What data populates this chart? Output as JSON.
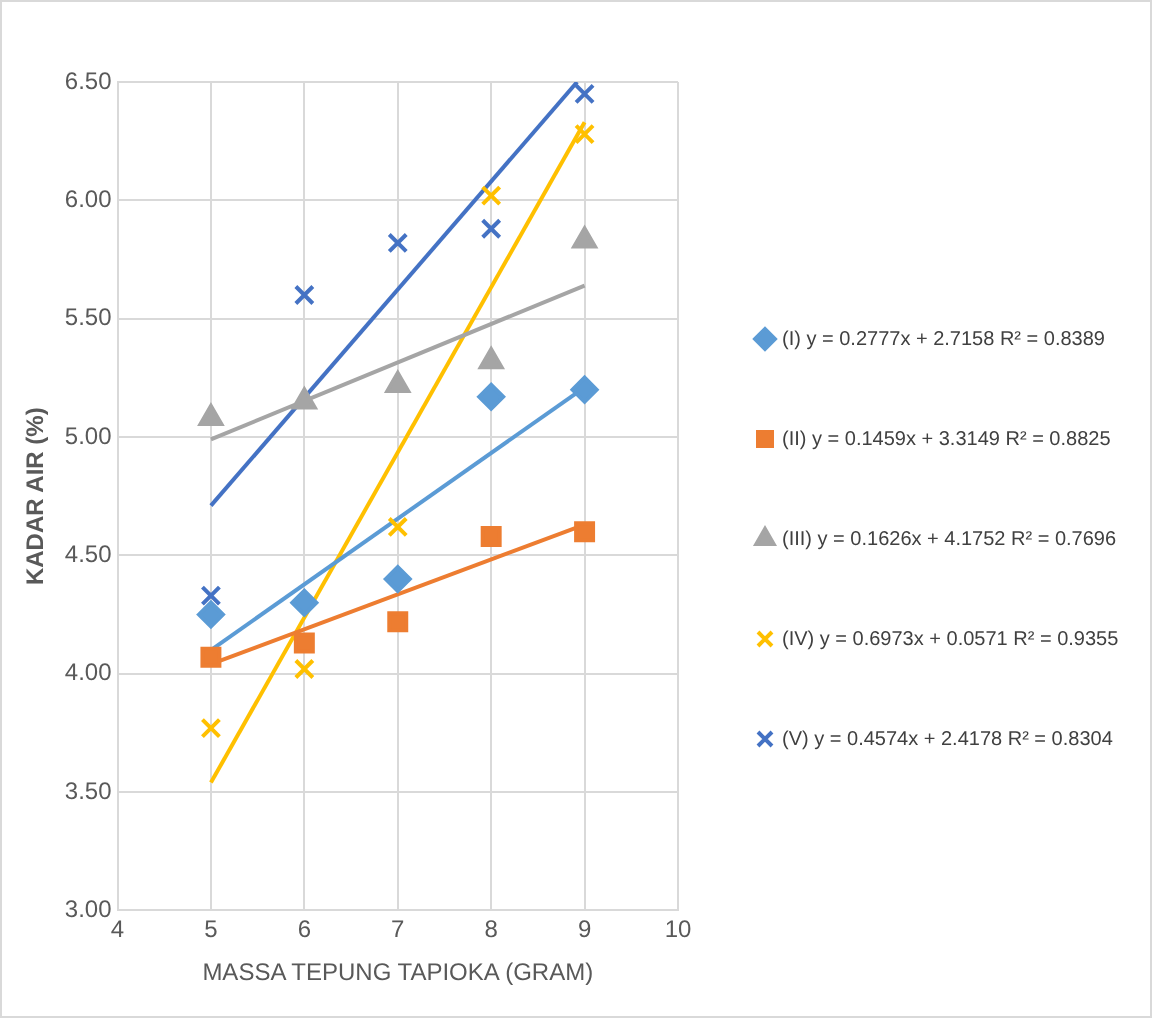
{
  "chart_data": {
    "type": "scatter",
    "xlabel": "MASSA TEPUNG TAPIOKA (GRAM)",
    "ylabel": "KADAR AIR (%)",
    "x": [
      5,
      6,
      7,
      8,
      9
    ],
    "xlim": [
      4,
      10
    ],
    "xticks": [
      4,
      5,
      6,
      7,
      8,
      9,
      10
    ],
    "ylim": [
      3,
      6.5
    ],
    "yticks": [
      {
        "value": 3,
        "label": "3.00"
      },
      {
        "value": 3.5,
        "label": "3.50"
      },
      {
        "value": 4,
        "label": "4.00"
      },
      {
        "value": 4.5,
        "label": "4.50"
      },
      {
        "value": 5,
        "label": "5.00"
      },
      {
        "value": 5.5,
        "label": "5.50"
      },
      {
        "value": 6,
        "label": "6.00"
      },
      {
        "value": 6.5,
        "label": "6.50"
      }
    ],
    "grid": true,
    "legend": "right",
    "series": [
      {
        "name": "(I) y = 0.2777x + 2.7158 R² = 0.8389",
        "color": "#5b9bd5",
        "marker": "diamond",
        "values": [
          4.25,
          4.3,
          4.4,
          5.17,
          5.2
        ]
      },
      {
        "name": "(II) y = 0.1459x + 3.3149 R² = 0.8825",
        "color": "#ed7d31",
        "marker": "square",
        "values": [
          4.07,
          4.13,
          4.22,
          4.58,
          4.6
        ]
      },
      {
        "name": "(III) y = 0.1626x + 4.1752 R² = 0.7696",
        "color": "#a5a5a5",
        "marker": "triangle",
        "values": [
          5.08,
          5.15,
          5.22,
          5.32,
          5.83
        ]
      },
      {
        "name": "(IV) y = 0.6973x + 0.0571 R² = 0.9355",
        "color": "#ffc000",
        "marker": "cross",
        "values": [
          3.77,
          4.02,
          4.62,
          6.02,
          6.28
        ]
      },
      {
        "name": "(V) y = 0.4574x + 2.4178 R² = 0.8304",
        "color": "#4472c4",
        "marker": "cross",
        "values": [
          4.33,
          5.6,
          5.82,
          5.88,
          6.45
        ]
      },
      {
        "type": "line",
        "color": "#5b9bd5",
        "marker": "none",
        "x": [
          5,
          9
        ],
        "values": [
          4.1,
          5.21
        ]
      },
      {
        "type": "line",
        "color": "#ed7d31",
        "marker": "none",
        "x": [
          5,
          9
        ],
        "values": [
          4.04,
          4.63
        ]
      },
      {
        "type": "line",
        "color": "#a5a5a5",
        "marker": "none",
        "x": [
          5,
          9
        ],
        "values": [
          4.99,
          5.64
        ]
      },
      {
        "type": "line",
        "color": "#ffc000",
        "marker": "none",
        "x": [
          5,
          9
        ],
        "values": [
          3.54,
          6.33
        ]
      },
      {
        "type": "line",
        "color": "#4472c4",
        "marker": "none",
        "x": [
          5,
          8.92
        ],
        "values": [
          4.71,
          6.5
        ]
      }
    ]
  }
}
